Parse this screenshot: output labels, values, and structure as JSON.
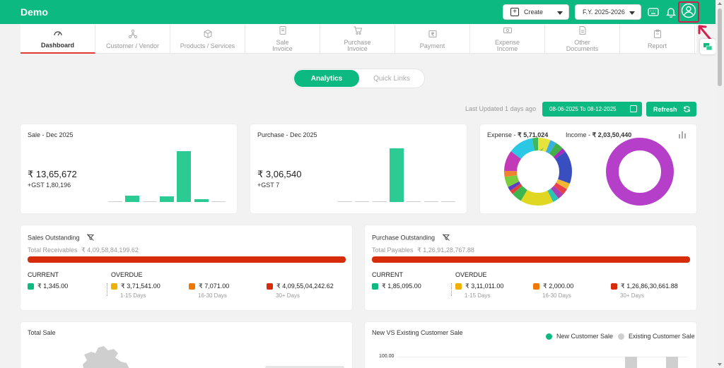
{
  "app": {
    "title": "Demo"
  },
  "topbar": {
    "create_label": "Create",
    "fy_label": "F.Y. 2025-2026",
    "icons": [
      "keyboard-icon",
      "bell-icon",
      "profile-icon"
    ]
  },
  "nav": {
    "items": [
      {
        "label": "Dashboard",
        "icon": "gauge-icon",
        "active": true
      },
      {
        "label": "Customer / Vendor",
        "icon": "network-icon"
      },
      {
        "label": "Products / Services",
        "icon": "box-icon"
      },
      {
        "label": "Sale\nInvoice",
        "icon": "invoice-icon"
      },
      {
        "label": "Purchase\nInvoice",
        "icon": "cart-icon"
      },
      {
        "label": "Payment",
        "icon": "rupee-icon"
      },
      {
        "label": "Expense\nIncome",
        "icon": "cash-icon"
      },
      {
        "label": "Other\nDocuments",
        "icon": "document-icon"
      },
      {
        "label": "Report",
        "icon": "clipboard-icon"
      }
    ]
  },
  "tabs": {
    "analytics": "Analytics",
    "quick_links": "Quick Links"
  },
  "updated": {
    "text": "Last Updated 1 days ago",
    "date_range": "08-06-2025 To 08-12-2025",
    "refresh_label": "Refresh"
  },
  "sale_card": {
    "title": "Sale - Dec 2025",
    "amount": "₹ 13,65,672",
    "gst": "+GST 1,80,196",
    "bars": [
      0.01,
      0.13,
      0.01,
      0.11,
      1.0,
      0.05,
      0.02
    ]
  },
  "purchase_card": {
    "title": "Purchase - Dec 2025",
    "amount": "₹ 3,06,540",
    "gst": "+GST 7",
    "bars": [
      0.01,
      0.01,
      0.01,
      1.0,
      0.01,
      0.01,
      0.01
    ]
  },
  "donut_card": {
    "expense_label": "Expense - ",
    "expense_value": "₹ 5,71,024",
    "income_label": "Income - ",
    "income_value": "₹ 2,03,50,440",
    "expense_segments": [
      {
        "color": "#e8e23c",
        "value": 6
      },
      {
        "color": "#3ab0e0",
        "value": 3
      },
      {
        "color": "#44b04a",
        "value": 4
      },
      {
        "color": "#a42bc0",
        "value": 2
      },
      {
        "color": "#3a4fbf",
        "value": 16
      },
      {
        "color": "#f2b632",
        "value": 3
      },
      {
        "color": "#e8414d",
        "value": 3
      },
      {
        "color": "#a83fb4",
        "value": 3
      },
      {
        "color": "#2ac4b0",
        "value": 3
      },
      {
        "color": "#e0d722",
        "value": 16
      },
      {
        "color": "#3db650",
        "value": 5
      },
      {
        "color": "#e0423c",
        "value": 2
      },
      {
        "color": "#5c3fc7",
        "value": 2
      },
      {
        "color": "#7ccd3e",
        "value": 5
      },
      {
        "color": "#f0832f",
        "value": 3
      },
      {
        "color": "#c23ab5",
        "value": 10
      },
      {
        "color": "#2bc8e6",
        "value": 12
      },
      {
        "color": "#3fb85c",
        "value": 3
      }
    ],
    "income_color": "#b53fc9"
  },
  "sales_outstanding": {
    "title": "Sales Outstanding",
    "total_label": "Total Receivables",
    "total_value": "₹ 4,09,58,84,199.62",
    "current_label": "CURRENT",
    "overdue_label": "OVERDUE",
    "current_value": "₹ 1,345.00",
    "overdue": [
      {
        "value": "₹ 3,71,541.00",
        "range": "1-15 Days",
        "color": "#f0b000"
      },
      {
        "value": "₹ 7,071.00",
        "range": "16-30 Days",
        "color": "#f07800"
      },
      {
        "value": "₹ 4,09,55,04,242.62",
        "range": "30+ Days",
        "color": "#d62c0a"
      }
    ],
    "current_color": "#0bb981"
  },
  "purchase_outstanding": {
    "title": "Purchase Outstanding",
    "total_label": "Total Payables",
    "total_value": "₹ 1,26,91,28,767.88",
    "current_label": "CURRENT",
    "overdue_label": "OVERDUE",
    "current_value": "₹ 1,85,095.00",
    "overdue": [
      {
        "value": "₹ 3,11,011.00",
        "range": "1-15 Days",
        "color": "#f0b000"
      },
      {
        "value": "₹ 2,000.00",
        "range": "16-30 Days",
        "color": "#f07800"
      },
      {
        "value": "₹ 1,26,86,30,661.88",
        "range": "30+ Days",
        "color": "#d62c0a"
      }
    ],
    "current_color": "#0bb981"
  },
  "total_sale": {
    "title": "Total Sale"
  },
  "customer_sale": {
    "title": "New VS Existing Customer Sale",
    "legend_new": "New Customer Sale",
    "legend_existing": "Existing Customer Sale",
    "new_color": "#0bb981",
    "existing_color": "#cfcfcf",
    "ytick_top": "100.00"
  }
}
